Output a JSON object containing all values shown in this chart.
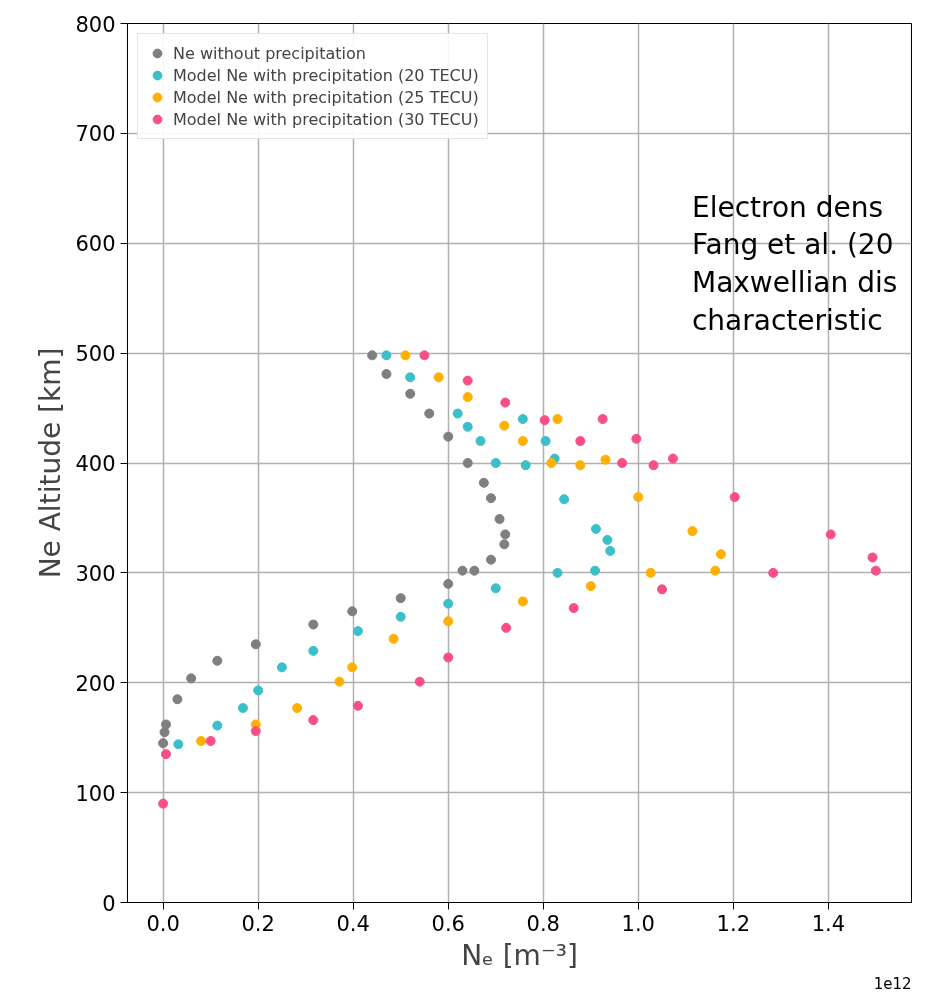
{
  "chart_data": {
    "type": "scatter",
    "xlabel": "Nₑ [m⁻³]",
    "ylabel": "Ne Altitude [km]",
    "xlim": [
      -0.075,
      1.575
    ],
    "ylim": [
      0,
      800
    ],
    "xticks": [
      {
        "value": 0,
        "label": "0.0"
      },
      {
        "value": 0.2,
        "label": "0.2"
      },
      {
        "value": 0.4,
        "label": "0.4"
      },
      {
        "value": 0.6,
        "label": "0.6"
      },
      {
        "value": 0.8,
        "label": "0.8"
      },
      {
        "value": 1.0,
        "label": "1.0"
      },
      {
        "value": 1.2,
        "label": "1.2"
      },
      {
        "value": 1.4,
        "label": "1.4"
      }
    ],
    "yticks": [
      0,
      100,
      200,
      300,
      400,
      500,
      600,
      700,
      800
    ],
    "grid": true,
    "legend": "top left",
    "marker": "circle",
    "annotations": [
      "Electron dens\nFang et al. (20\nMaxwellian dis\ncharacteristic",
      "1e12"
    ],
    "series": [
      {
        "name": "Ne without precipitation",
        "color": "#7f7f7f",
        "x": [
          0,
          0.003,
          0.006,
          0.03,
          0.059,
          0.114,
          0.195,
          0.316,
          0.398,
          0.5,
          0.6,
          0.63,
          0.655,
          0.69,
          0.718,
          0.72,
          0.708,
          0.69,
          0.675,
          0.641,
          0.6,
          0.56,
          0.52,
          0.47,
          0.44
        ],
        "values": [
          145,
          155,
          162,
          185,
          204,
          220,
          235,
          253,
          265,
          277,
          290,
          302,
          302,
          312,
          326,
          335,
          349,
          368,
          382,
          400,
          424,
          445,
          463,
          481,
          498
        ]
      },
      {
        "name": "Model Ne with precipitation (20 TECU)",
        "color": "#3cbfc8",
        "x": [
          0.032,
          0.114,
          0.168,
          0.2,
          0.25,
          0.316,
          0.41,
          0.5,
          0.6,
          0.7,
          0.83,
          0.909,
          0.941,
          0.935,
          0.911,
          0.844,
          0.763,
          0.824,
          0.805,
          0.757,
          0.7,
          0.668,
          0.641,
          0.62,
          0.52,
          0.47
        ],
        "values": [
          144,
          161,
          177,
          193,
          214,
          229,
          247,
          260,
          272,
          286,
          300,
          302,
          320,
          330,
          340,
          367,
          398,
          404,
          420,
          440,
          400,
          420,
          433,
          445,
          478,
          498
        ]
      },
      {
        "name": "Model Ne with precipitation (25 TECU)",
        "color": "#ffb000",
        "x": [
          0.08,
          0.195,
          0.282,
          0.371,
          0.398,
          0.485,
          0.6,
          0.757,
          0.9,
          1.026,
          1.162,
          1.174,
          1.114,
          1.0,
          0.878,
          0.931,
          0.83,
          0.817,
          0.757,
          0.718,
          0.641,
          0.58,
          0.51
        ],
        "values": [
          147,
          162,
          177,
          201,
          214,
          240,
          256,
          274,
          288,
          300,
          302,
          317,
          338,
          369,
          398,
          403,
          440,
          400,
          420,
          434,
          460,
          478,
          498
        ]
      },
      {
        "name": "Model Ne with precipitation (30 TECU)",
        "color": "#f94f86",
        "x": [
          0,
          0.006,
          0.1,
          0.195,
          0.316,
          0.41,
          0.54,
          0.6,
          0.722,
          0.864,
          1.05,
          1.284,
          1.5,
          1.493,
          1.405,
          1.203,
          1.032,
          1.073,
          0.996,
          0.925,
          0.966,
          0.878,
          0.803,
          0.72,
          0.641,
          0.55
        ],
        "values": [
          90,
          135,
          147,
          156,
          166,
          179,
          201,
          223,
          250,
          268,
          285,
          300,
          302,
          314,
          335,
          369,
          398,
          404,
          422,
          440,
          400,
          420,
          439,
          455,
          475,
          498
        ]
      }
    ]
  }
}
